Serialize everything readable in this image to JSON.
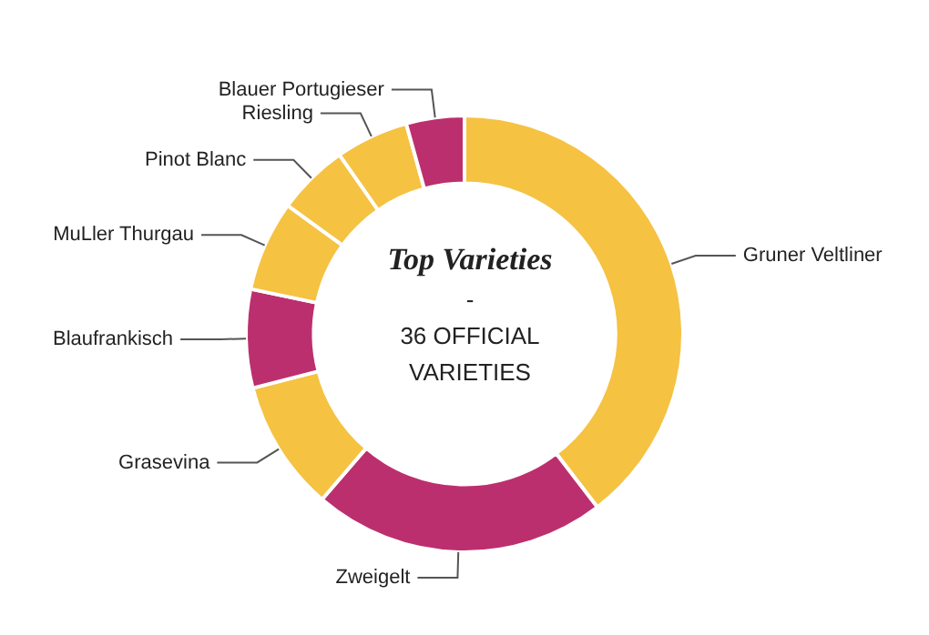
{
  "chart_data": {
    "type": "donut",
    "title": "Top Varieties",
    "annotations": [
      "-",
      "36 OFFICIAL VARIETIES"
    ],
    "categories": [
      "Gruner Veltliner",
      "Zweigelt",
      "Grasevina",
      "Blaufrankisch",
      "MuLler Thurgau",
      "Pinot Blanc",
      "Riesling",
      "Blauer Portugieser"
    ],
    "values": [
      39.6,
      21.7,
      9.7,
      7.3,
      6.7,
      5.3,
      5.4,
      4.3
    ],
    "colors": [
      "#f5c242",
      "#bc2f6e",
      "#f5c242",
      "#bc2f6e",
      "#f5c242",
      "#f5c242",
      "#f5c242",
      "#bc2f6e"
    ],
    "legend": false
  }
}
